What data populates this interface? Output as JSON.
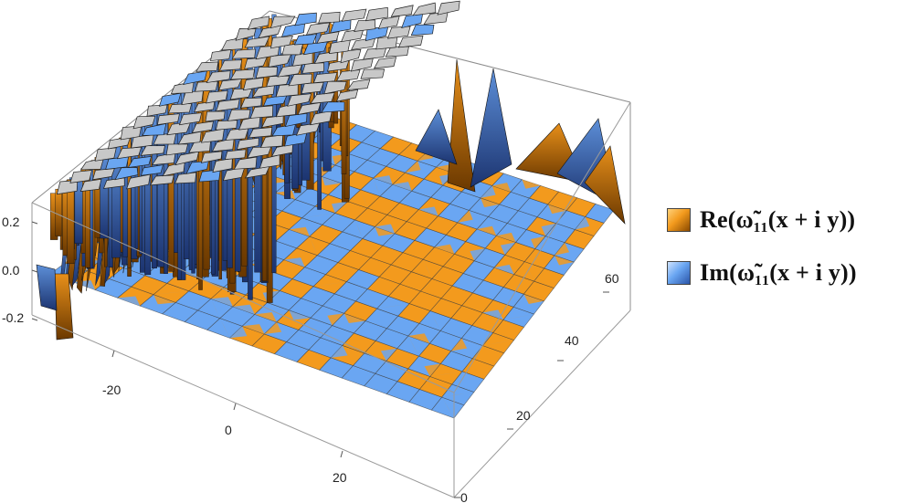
{
  "chart_data": {
    "type": "surface3d",
    "title": "",
    "z_ticks": [
      "0.2",
      "0.0",
      "-0.2"
    ],
    "x_ticks": [
      "-20",
      "0",
      "20"
    ],
    "y_ticks": [
      "0",
      "20",
      "40",
      "60"
    ],
    "zlim": [
      -0.3,
      0.3
    ],
    "series": [
      {
        "name": "Re",
        "label": "Re(ω̃11(x + i y))",
        "color": "#f39a1d",
        "shade": "#7a4100"
      },
      {
        "name": "Im",
        "label": "Im(ω̃11(x + i y))",
        "color": "#6aa6f2",
        "shade": "#1e3d80"
      }
    ],
    "legend_placement": "right",
    "grid": true
  },
  "legend": {
    "items": [
      {
        "text": "Re(ω̃₁₁(x + i y))"
      },
      {
        "text": "Im(ω̃₁₁(x + i y))"
      }
    ]
  }
}
